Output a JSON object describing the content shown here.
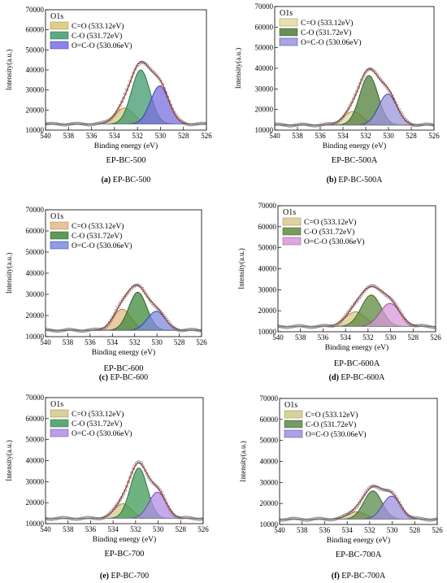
{
  "chart_data": [
    {
      "type": "area",
      "panel_letter": "(a)",
      "name": "EP-BC-500",
      "caption": "EP-BC-500",
      "title": "O1s",
      "xlabel": "Binding energy (eV)",
      "ylabel": "Intensity(a.u.)",
      "xlim": [
        540,
        526
      ],
      "ylim": [
        10000,
        70000
      ],
      "xticks": [
        540,
        538,
        536,
        534,
        532,
        530,
        528,
        526
      ],
      "yticks": [
        10000,
        20000,
        30000,
        40000,
        50000,
        60000,
        70000
      ],
      "ytick_labels": [
        "10000",
        "20000",
        "30000",
        "40000",
        "50000",
        "60000",
        "70000"
      ],
      "legend": [
        "C=O (533.12eV)",
        "C-O (531.72eV)",
        "O=C-O (530.06eV)"
      ],
      "baseline": 13000,
      "fwhm": 1.9,
      "series": [
        {
          "name": "C=O (533.12eV)",
          "center": 533.12,
          "height": 8000,
          "fill": "#d6c77a",
          "stroke": "#a08c2a"
        },
        {
          "name": "C-O (531.72eV)",
          "center": 531.72,
          "height": 27000,
          "fill": "#3f9a6f",
          "stroke": "#1f6b45"
        },
        {
          "name": "O=C-O (530.06eV)",
          "center": 530.06,
          "height": 19000,
          "fill": "#7a6fe0",
          "stroke": "#3a2fb0"
        }
      ]
    },
    {
      "type": "area",
      "panel_letter": "(b)",
      "name": "EP-BC-500A",
      "caption": "EP-BC-500A",
      "title": "O1s",
      "xlabel": "Binding energy (eV)",
      "ylabel": "Intensity(a.u.)",
      "xlim": [
        540,
        526
      ],
      "ylim": [
        10000,
        70000
      ],
      "xticks": [
        540,
        538,
        536,
        534,
        532,
        530,
        528,
        526
      ],
      "yticks": [
        10000,
        20000,
        30000,
        40000,
        50000,
        60000,
        70000
      ],
      "ytick_labels": [
        "10000",
        "20000",
        "30000",
        "40000",
        "50000",
        "60000",
        "70000"
      ],
      "legend": [
        "C=O (533.12eV)",
        "C-O (531.72eV)",
        "O=C-O (530.06eV)"
      ],
      "baseline": 12500,
      "fwhm": 1.9,
      "series": [
        {
          "name": "C=O (533.12eV)",
          "center": 533.12,
          "height": 6500,
          "fill": "#e3dba8",
          "stroke": "#9b8d3a"
        },
        {
          "name": "C-O (531.72eV)",
          "center": 531.72,
          "height": 24000,
          "fill": "#4f7d3a",
          "stroke": "#2e5a1f"
        },
        {
          "name": "O=C-O (530.06eV)",
          "center": 530.06,
          "height": 15000,
          "fill": "#9a95dd",
          "stroke": "#3a35a0"
        }
      ]
    },
    {
      "type": "area",
      "panel_letter": "(c)",
      "name": "EP-BC-600",
      "caption": "EP-BC-600",
      "title": "O1s",
      "xlabel": "Binding energy (eV)",
      "ylabel": "Intensity(a.u.)",
      "xlim": [
        540,
        526
      ],
      "ylim": [
        10000,
        70000
      ],
      "xticks": [
        540,
        538,
        536,
        534,
        532,
        530,
        528,
        526
      ],
      "yticks": [
        10000,
        20000,
        30000,
        40000,
        50000,
        60000,
        70000
      ],
      "ytick_labels": [
        "10000",
        "20000",
        "30000",
        "40000",
        "50000",
        "60000",
        "70000"
      ],
      "legend": [
        "C=O (533.12eV)",
        "C-O (531.72eV)",
        "O=C-O (530.06eV)"
      ],
      "baseline": 13000,
      "fwhm": 1.9,
      "series": [
        {
          "name": "C=O (533.12eV)",
          "center": 533.12,
          "height": 10000,
          "fill": "#e2b98a",
          "stroke": "#b37c3a"
        },
        {
          "name": "C-O (531.72eV)",
          "center": 531.72,
          "height": 18000,
          "fill": "#3f8a3a",
          "stroke": "#1f5a1a"
        },
        {
          "name": "O=C-O (530.06eV)",
          "center": 530.06,
          "height": 9000,
          "fill": "#7d8ae0",
          "stroke": "#2a3ab0"
        }
      ]
    },
    {
      "type": "area",
      "panel_letter": "(d)",
      "name": "EP-BC-600A",
      "caption": "EP-BC-600A",
      "title": "O1s",
      "xlabel": "Binding energy (eV)",
      "ylabel": "Intensity(a.u.)",
      "xlim": [
        540,
        526
      ],
      "ylim": [
        10000,
        70000
      ],
      "xticks": [
        540,
        538,
        536,
        534,
        532,
        530,
        528,
        526
      ],
      "yticks": [
        10000,
        20000,
        30000,
        40000,
        50000,
        60000,
        70000
      ],
      "ytick_labels": [
        "10000",
        "20000",
        "30000",
        "40000",
        "50000",
        "60000",
        "70000"
      ],
      "legend": [
        "C=O (533.12eV)",
        "C-O (531.72eV)",
        "O=C-O (530.06eV)"
      ],
      "baseline": 12500,
      "fwhm": 2.1,
      "series": [
        {
          "name": "C=O (533.12eV)",
          "center": 533.12,
          "height": 7000,
          "fill": "#d8c98e",
          "stroke": "#9b8a3a"
        },
        {
          "name": "C-O (531.72eV)",
          "center": 531.72,
          "height": 15000,
          "fill": "#5e8a3e",
          "stroke": "#3a5e1f"
        },
        {
          "name": "O=C-O (530.06eV)",
          "center": 530.06,
          "height": 11000,
          "fill": "#d69ad9",
          "stroke": "#9a3aa0"
        }
      ]
    },
    {
      "type": "area",
      "panel_letter": "(e)",
      "name": "EP-BC-700",
      "caption": "EP-BC-700",
      "title": "O1s",
      "xlabel": "Binding energy (eV)",
      "ylabel": "Intensity(a.u.)",
      "xlim": [
        540,
        526
      ],
      "ylim": [
        10000,
        70000
      ],
      "xticks": [
        540,
        538,
        536,
        534,
        532,
        530,
        528,
        526
      ],
      "yticks": [
        10000,
        20000,
        30000,
        40000,
        50000,
        60000,
        70000
      ],
      "ytick_labels": [
        "10000",
        "20000",
        "30000",
        "40000",
        "50000",
        "60000",
        "70000"
      ],
      "legend": [
        "C=O (533.12eV)",
        "C-O (531.72eV)",
        "O=C-O (530.06eV)"
      ],
      "baseline": 12500,
      "fwhm": 1.8,
      "series": [
        {
          "name": "C=O (533.12eV)",
          "center": 533.12,
          "height": 7000,
          "fill": "#d2c88a",
          "stroke": "#978a3a"
        },
        {
          "name": "C-O (531.72eV)",
          "center": 531.72,
          "height": 24000,
          "fill": "#3f9a5a",
          "stroke": "#1f6a35"
        },
        {
          "name": "O=C-O (530.06eV)",
          "center": 530.06,
          "height": 12500,
          "fill": "#b08de6",
          "stroke": "#6a3ab8"
        }
      ]
    },
    {
      "type": "area",
      "panel_letter": "(f)",
      "name": "EP-BC-700A",
      "caption": "EP-BC-700A",
      "title": "O1s",
      "xlabel": "Binding energy (eV)",
      "ylabel": "Intensity(a.u.)",
      "xlim": [
        540,
        526
      ],
      "ylim": [
        10000,
        70000
      ],
      "xticks": [
        540,
        538,
        536,
        534,
        532,
        530,
        528,
        526
      ],
      "yticks": [
        10000,
        20000,
        30000,
        40000,
        50000,
        60000,
        70000
      ],
      "ytick_labels": [
        "10000",
        "20000",
        "30000",
        "40000",
        "50000",
        "60000",
        "70000"
      ],
      "legend": [
        "C=O (533.12eV)",
        "C-O (531.72eV)",
        "O=C-O (530.06eV)"
      ],
      "baseline": 12500,
      "fwhm": 1.9,
      "series": [
        {
          "name": "C=O (533.12eV)",
          "center": 533.12,
          "height": 3500,
          "fill": "#d0c98e",
          "stroke": "#948a3a"
        },
        {
          "name": "C-O (531.72eV)",
          "center": 531.72,
          "height": 13500,
          "fill": "#5a8a4a",
          "stroke": "#355a25"
        },
        {
          "name": "O=C-O (530.06eV)",
          "center": 530.06,
          "height": 11000,
          "fill": "#9d92e0",
          "stroke": "#4a3ab0"
        }
      ]
    }
  ],
  "colors": {
    "envelope": "#b3201e",
    "raw_markers": "#707070",
    "axis": "#000000",
    "background": "#ffffff"
  }
}
